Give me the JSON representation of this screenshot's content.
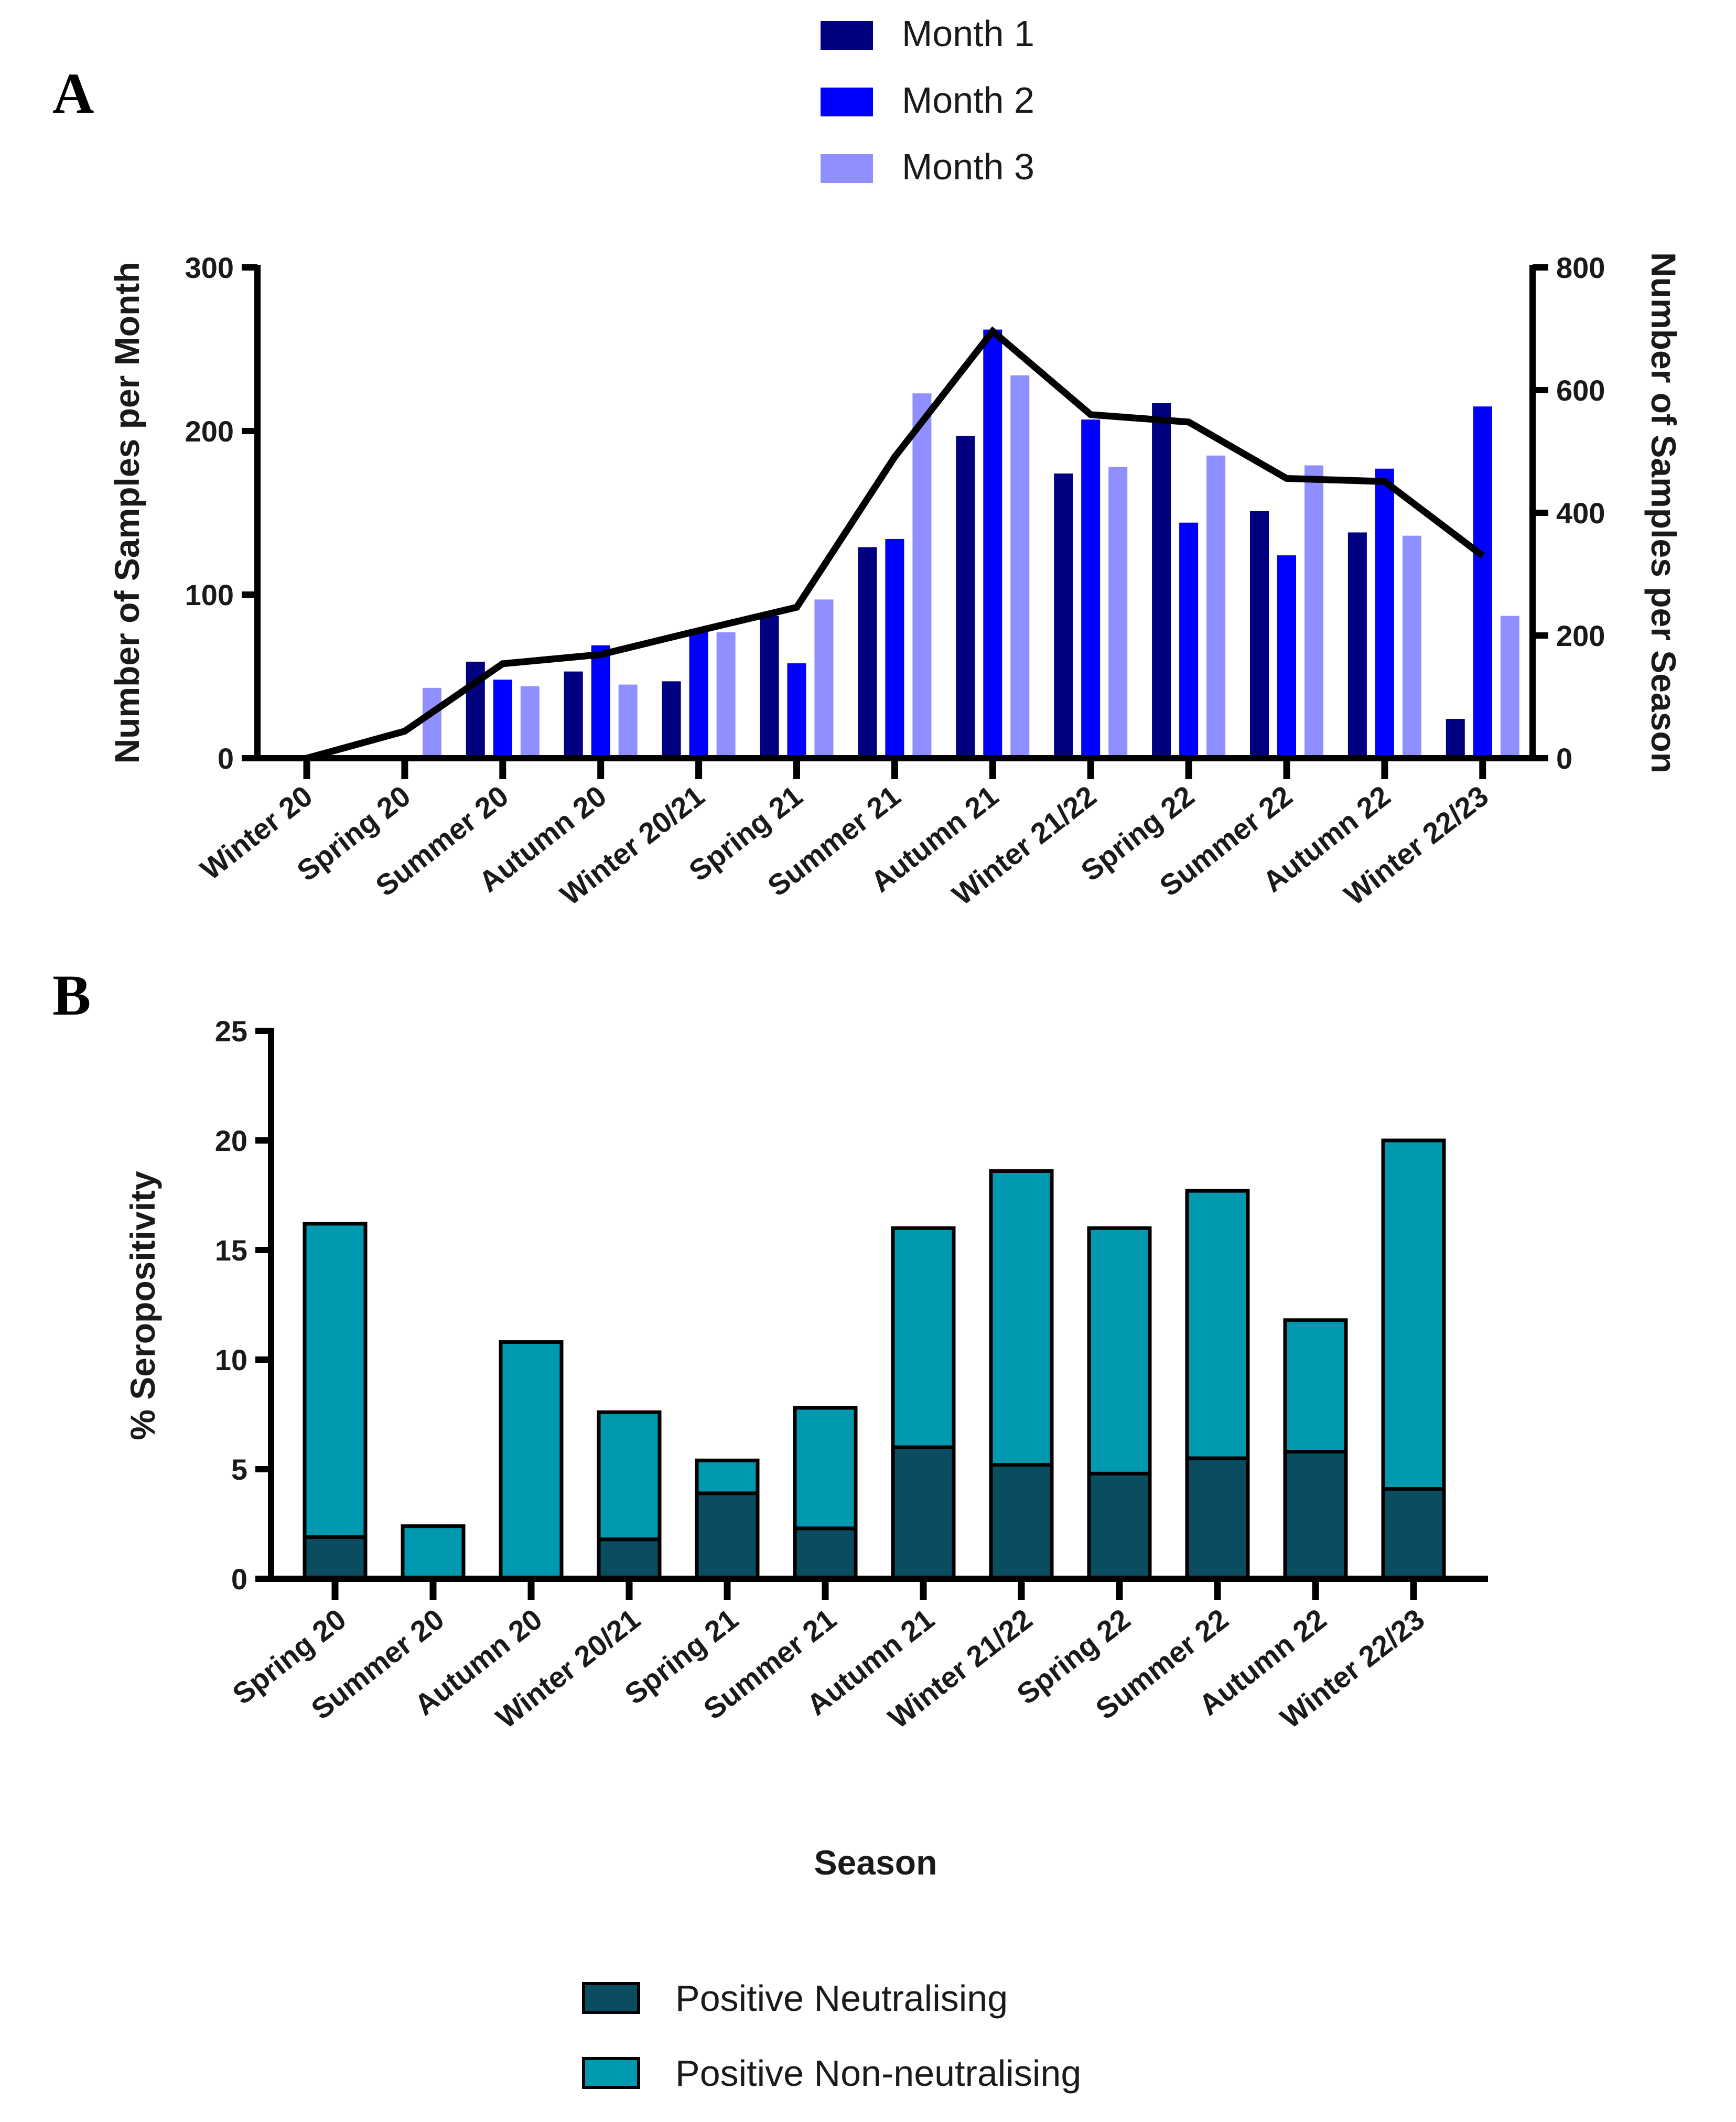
{
  "chart_data": [
    {
      "panel_label": "A",
      "type": "bar+line",
      "categories": [
        "Winter 20",
        "Spring 20",
        "Summer 20",
        "Autumn 20",
        "Winter 20/21",
        "Spring 21",
        "Summer 21",
        "Autumn 21",
        "Winter 21/22",
        "Spring 22",
        "Summer 22",
        "Autumn 22",
        "Winter 22/23"
      ],
      "ylabel": "Number of Samples per Month",
      "ylabel_right": "Number of Samples per Season",
      "ylim": [
        0,
        300
      ],
      "yticks": [
        "0",
        "100",
        "200",
        "300"
      ],
      "ylim_right": [
        0,
        800
      ],
      "yticks_right": [
        "0",
        "200",
        "400",
        "600",
        "800"
      ],
      "series": [
        {
          "name": "Month 1",
          "color": "#000080",
          "values": [
            0,
            0,
            59,
            53,
            47,
            87,
            129,
            197,
            174,
            217,
            151,
            138,
            24
          ]
        },
        {
          "name": "Month 2",
          "color": "#0000ff",
          "values": [
            0,
            0,
            48,
            69,
            78,
            58,
            134,
            262,
            207,
            144,
            124,
            177,
            215
          ]
        },
        {
          "name": "Month 3",
          "color": "#8f8fff",
          "values": [
            0,
            43,
            44,
            45,
            77,
            97,
            223,
            234,
            178,
            185,
            179,
            136,
            87
          ]
        }
      ],
      "line": {
        "name": "Samples per Season",
        "axis": "right",
        "color": "#000000",
        "values": [
          0,
          44,
          154,
          169,
          208,
          246,
          491,
          696,
          560,
          548,
          456,
          451,
          330
        ]
      },
      "legend_position": "top"
    },
    {
      "panel_label": "B",
      "type": "stacked-bar",
      "categories": [
        "Spring 20",
        "Summer 20",
        "Autumn 20",
        "Winter 20/21",
        "Spring 21",
        "Summer 21",
        "Autumn 21",
        "Winter 21/22",
        "Spring 22",
        "Summer 22",
        "Autumn 22",
        "Winter 22/23"
      ],
      "xlabel": "Season",
      "ylabel": "% Seropositivity",
      "ylim": [
        0,
        25
      ],
      "yticks": [
        "0",
        "5",
        "10",
        "15",
        "20",
        "25"
      ],
      "series": [
        {
          "name": "Positive Neutralising",
          "color": "#0b4d60",
          "values": [
            1.9,
            0,
            0,
            1.8,
            3.9,
            2.3,
            6.0,
            5.2,
            4.8,
            5.5,
            5.8,
            4.1
          ]
        },
        {
          "name": "Positive Non-neutralising",
          "color": "#0099b0",
          "values": [
            14.3,
            2.4,
            10.8,
            5.8,
            1.5,
            5.5,
            10.0,
            13.4,
            11.2,
            12.2,
            6.0,
            15.9
          ]
        }
      ],
      "legend_position": "bottom"
    }
  ]
}
